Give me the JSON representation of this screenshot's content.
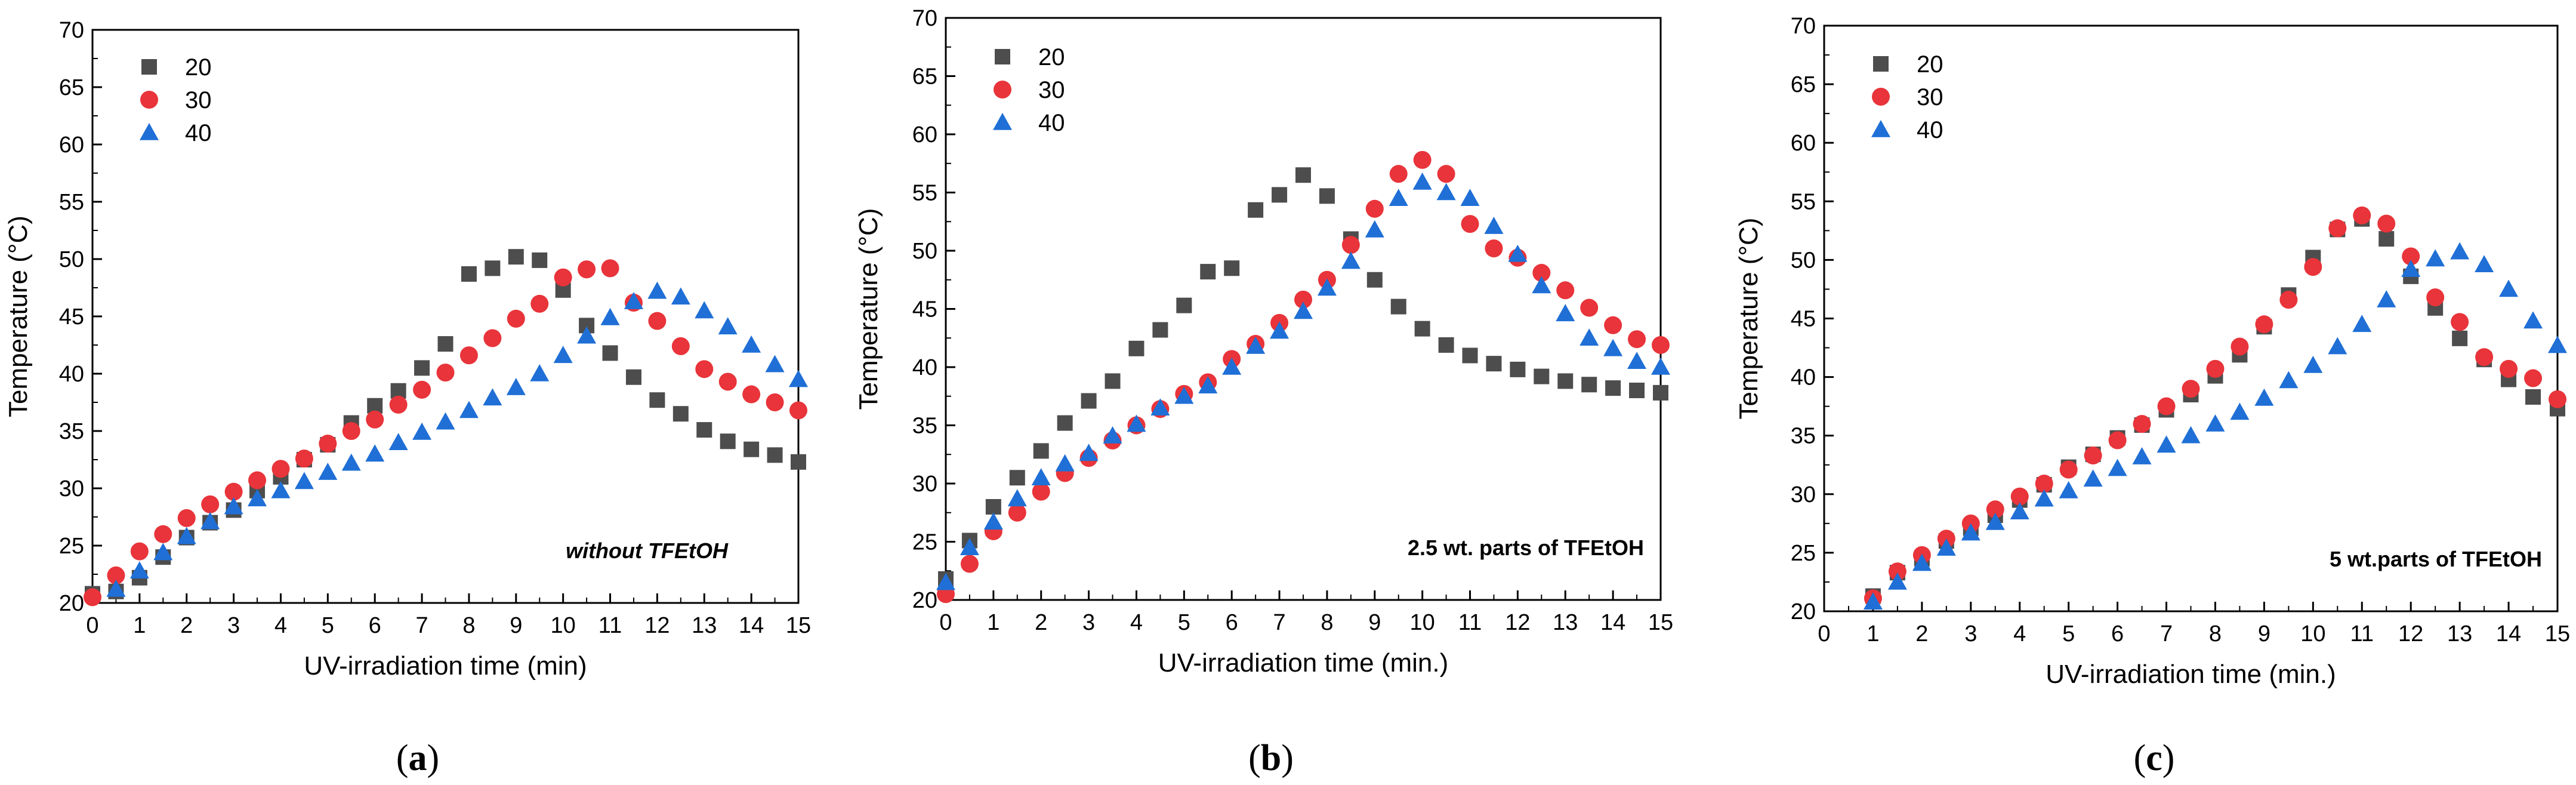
{
  "colors": {
    "s20": "#4d4d4d",
    "s30": "#e8343a",
    "s40": "#1f6fd6",
    "axis": "#000000"
  },
  "series_markers": [
    "square",
    "circle",
    "triangle"
  ],
  "chart_data": [
    {
      "type": "scatter",
      "caption": "(a)",
      "annotation": "without TFEtOH",
      "annotation_style": "bold-italic",
      "xlabel": "UV-irradiation time (min)",
      "ylabel": "Temperature (°C)",
      "xlim": [
        0,
        15
      ],
      "ylim": [
        20,
        70
      ],
      "xticks": [
        0,
        1,
        2,
        3,
        4,
        5,
        6,
        7,
        8,
        9,
        10,
        11,
        12,
        13,
        14,
        15
      ],
      "yticks": [
        20,
        25,
        30,
        35,
        40,
        45,
        50,
        55,
        60,
        65,
        70
      ],
      "legend_position": "top-left",
      "series": [
        {
          "name": "20",
          "x": [
            0,
            0.5,
            1,
            1.5,
            2,
            2.5,
            3,
            3.5,
            4,
            4.5,
            5,
            5.5,
            6,
            6.5,
            7,
            7.5,
            8,
            8.5,
            9,
            9.5,
            10,
            10.5,
            11,
            11.5,
            12,
            12.5,
            13,
            13.5,
            14,
            14.5,
            15
          ],
          "y": [
            20.8,
            21,
            22.2,
            24,
            25.7,
            27,
            28.1,
            29.8,
            31,
            32.5,
            33.8,
            35.7,
            37.2,
            38.5,
            40.5,
            42.6,
            48.7,
            49.2,
            50.2,
            49.9,
            47.3,
            44.2,
            41.8,
            39.7,
            37.7,
            36.5,
            35.1,
            34.1,
            33.4,
            32.9,
            32.3
          ]
        },
        {
          "name": "30",
          "x": [
            0,
            0.5,
            1,
            1.5,
            2,
            2.5,
            3,
            3.5,
            4,
            4.5,
            5,
            5.5,
            6,
            6.5,
            7,
            7.5,
            8,
            8.5,
            9,
            9.5,
            10,
            10.5,
            11,
            11.5,
            12,
            12.5,
            13,
            13.5,
            14,
            14.5,
            15
          ],
          "y": [
            20.5,
            22.4,
            24.5,
            26,
            27.4,
            28.6,
            29.7,
            30.7,
            31.7,
            32.6,
            33.9,
            35,
            36,
            37.3,
            38.6,
            40.1,
            41.6,
            43.1,
            44.8,
            46.1,
            48.4,
            49.1,
            49.2,
            46.2,
            44.6,
            42.4,
            40.4,
            39.3,
            38.2,
            37.5,
            36.8
          ]
        },
        {
          "name": "40",
          "x": [
            0.5,
            1,
            1.5,
            2,
            2.5,
            3,
            3.5,
            4,
            4.5,
            5,
            5.5,
            6,
            6.5,
            7,
            7.5,
            8,
            8.5,
            9,
            9.5,
            10,
            10.5,
            11,
            11.5,
            12,
            12.5,
            13,
            13.5,
            14,
            14.5,
            15
          ],
          "y": [
            21.2,
            22.8,
            24.4,
            25.8,
            27.1,
            28.4,
            29.1,
            29.8,
            30.6,
            31.4,
            32.2,
            33,
            34,
            34.9,
            35.8,
            36.8,
            37.9,
            38.8,
            40,
            41.6,
            43.3,
            44.9,
            46.3,
            47.2,
            46.7,
            45.5,
            44.1,
            42.5,
            40.8,
            39.5
          ]
        }
      ]
    },
    {
      "type": "scatter",
      "caption": "(b)",
      "annotation": "2.5 wt. parts of TFEtOH",
      "annotation_style": "bold",
      "xlabel": "UV-irradiation time (min.)",
      "ylabel": "Temperature (°C)",
      "xlim": [
        0,
        15
      ],
      "ylim": [
        20,
        70
      ],
      "xticks": [
        0,
        1,
        2,
        3,
        4,
        5,
        6,
        7,
        8,
        9,
        10,
        11,
        12,
        13,
        14,
        15
      ],
      "yticks": [
        20,
        25,
        30,
        35,
        40,
        45,
        50,
        55,
        60,
        65,
        70
      ],
      "legend_position": "top-left",
      "series": [
        {
          "name": "20",
          "x": [
            0,
            0.5,
            1,
            1.5,
            2,
            2.5,
            3,
            3.5,
            4,
            4.5,
            5,
            5.5,
            6,
            6.5,
            7,
            7.5,
            8,
            8.5,
            9,
            9.5,
            10,
            10.5,
            11,
            11.5,
            12,
            12.5,
            13,
            13.5,
            14,
            14.5,
            15
          ],
          "y": [
            21.8,
            25.1,
            28,
            30.5,
            32.8,
            35.2,
            37.1,
            38.8,
            41.6,
            43.2,
            45.3,
            48.2,
            48.5,
            53.5,
            54.8,
            56.5,
            54.7,
            51,
            47.5,
            45.2,
            43.3,
            41.9,
            41,
            40.3,
            39.8,
            39.2,
            38.8,
            38.5,
            38.2,
            38,
            37.8
          ]
        },
        {
          "name": "30",
          "x": [
            0,
            0.5,
            1,
            1.5,
            2,
            2.5,
            3,
            3.5,
            4,
            4.5,
            5,
            5.5,
            6,
            6.5,
            7,
            7.5,
            8,
            8.5,
            9,
            9.5,
            10,
            10.5,
            11,
            11.5,
            12,
            12.5,
            13,
            13.5,
            14,
            14.5,
            15
          ],
          "y": [
            20.5,
            23.1,
            25.9,
            27.5,
            29.3,
            30.9,
            32.2,
            33.7,
            35,
            36.4,
            37.7,
            38.7,
            40.7,
            42,
            43.8,
            45.8,
            47.5,
            50.5,
            53.6,
            56.6,
            57.8,
            56.6,
            52.3,
            50.2,
            49.4,
            48.1,
            46.6,
            45.1,
            43.6,
            42.4,
            41.9
          ]
        },
        {
          "name": "40",
          "x": [
            0,
            0.5,
            1,
            1.5,
            2,
            2.5,
            3,
            3.5,
            4,
            4.5,
            5,
            5.5,
            6,
            6.5,
            7,
            7.5,
            8,
            8.5,
            9,
            9.5,
            10,
            10.5,
            11,
            11.5,
            12,
            12.5,
            13,
            13.5,
            14,
            14.5,
            15
          ],
          "y": [
            21.5,
            24.5,
            26.7,
            28.7,
            30.5,
            31.7,
            32.6,
            34.1,
            35.1,
            36.5,
            37.5,
            38.4,
            40,
            41.8,
            43.1,
            44.8,
            46.8,
            49.1,
            51.8,
            54.5,
            55.9,
            55,
            54.5,
            52.1,
            49.7,
            47,
            44.6,
            42.5,
            41.6,
            40.5,
            40
          ]
        }
      ]
    },
    {
      "type": "scatter",
      "caption": "(c)",
      "annotation": "5 wt.parts of  TFEtOH",
      "annotation_style": "bold",
      "xlabel": "UV-irradiation time (min.)",
      "ylabel": "Temperature (°C)",
      "xlim": [
        0,
        15
      ],
      "ylim": [
        20,
        70
      ],
      "xticks": [
        0,
        1,
        2,
        3,
        4,
        5,
        6,
        7,
        8,
        9,
        10,
        11,
        12,
        13,
        14,
        15
      ],
      "yticks": [
        20,
        25,
        30,
        35,
        40,
        45,
        50,
        55,
        60,
        65,
        70
      ],
      "legend_position": "top-left",
      "series": [
        {
          "name": "20",
          "x": [
            1,
            1.5,
            2,
            2.5,
            3,
            3.5,
            4,
            4.5,
            5,
            5.5,
            6,
            6.5,
            7,
            7.5,
            8,
            8.5,
            9,
            9.5,
            10,
            10.5,
            11,
            11.5,
            12,
            12.5,
            13,
            13.5,
            14,
            14.5,
            15
          ],
          "y": [
            21.3,
            23.3,
            24.5,
            26,
            27.1,
            28.2,
            29.5,
            30.8,
            32.3,
            33.4,
            34.8,
            35.9,
            37.2,
            38.5,
            40.1,
            41.9,
            44.3,
            47,
            50.2,
            52.6,
            53.5,
            51.8,
            48.6,
            45.9,
            43.3,
            41.5,
            39.8,
            38.3,
            37.3
          ]
        },
        {
          "name": "30",
          "x": [
            1,
            1.5,
            2,
            2.5,
            3,
            3.5,
            4,
            4.5,
            5,
            5.5,
            6,
            6.5,
            7,
            7.5,
            8,
            8.5,
            9,
            9.5,
            10,
            10.5,
            11,
            11.5,
            12,
            12.5,
            13,
            13.5,
            14,
            14.5,
            15
          ],
          "y": [
            21.1,
            23.4,
            24.8,
            26.2,
            27.5,
            28.7,
            29.8,
            30.9,
            32.1,
            33.3,
            34.6,
            36,
            37.5,
            39,
            40.7,
            42.6,
            44.5,
            46.6,
            49.4,
            52.7,
            53.8,
            53.1,
            50.3,
            46.8,
            44.7,
            41.7,
            40.7,
            39.9,
            38.1
          ]
        },
        {
          "name": "40",
          "x": [
            1,
            1.5,
            2,
            2.5,
            3,
            3.5,
            4,
            4.5,
            5,
            5.5,
            6,
            6.5,
            7,
            7.5,
            8,
            8.5,
            9,
            9.5,
            10,
            10.5,
            11,
            11.5,
            12,
            12.5,
            13,
            13.5,
            14,
            14.5,
            15
          ],
          "y": [
            20.8,
            22.5,
            24.1,
            25.4,
            26.7,
            27.6,
            28.5,
            29.6,
            30.3,
            31.3,
            32.2,
            33.2,
            34.2,
            35,
            36,
            37,
            38.2,
            39.7,
            41,
            42.6,
            44.5,
            46.6,
            49.2,
            50.1,
            50.7,
            49.6,
            47.5,
            44.8,
            42.7
          ]
        }
      ]
    }
  ]
}
